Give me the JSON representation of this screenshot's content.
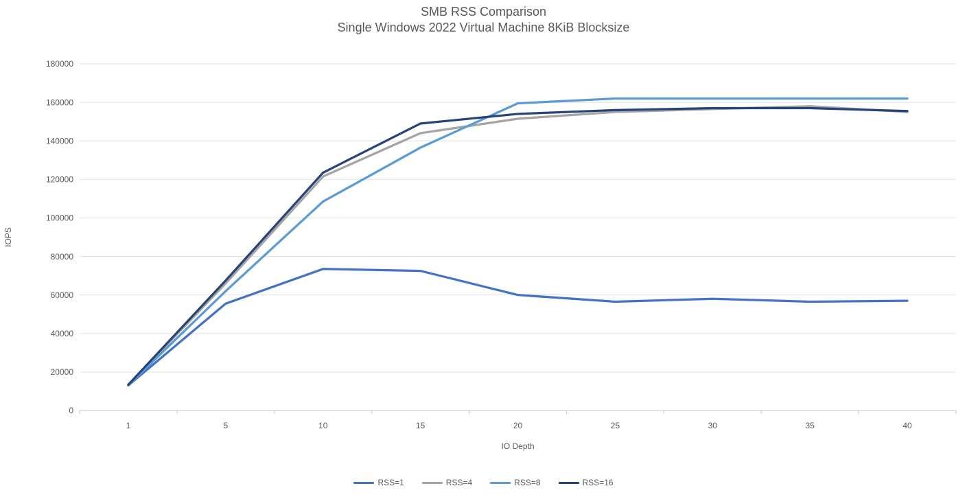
{
  "chart_data": {
    "type": "line",
    "title": "SMB RSS Comparison",
    "subtitle": "Single Windows 2022 Virtual Machine 8KiB Blocksize",
    "xlabel": "IO Depth",
    "ylabel": "IOPS",
    "categories": [
      1,
      5,
      10,
      15,
      20,
      25,
      30,
      35,
      40
    ],
    "series": [
      {
        "name": "RSS=1",
        "color": "#4472C4",
        "values": [
          13000,
          55500,
          73500,
          72500,
          60000,
          56500,
          58000,
          56500,
          57000
        ]
      },
      {
        "name": "RSS=4",
        "color": "#A5A5A5",
        "values": [
          13200,
          66000,
          121500,
          144000,
          151500,
          155000,
          156500,
          158000,
          155000
        ]
      },
      {
        "name": "RSS=8",
        "color": "#5B9BD5",
        "values": [
          13100,
          62000,
          108500,
          136500,
          159500,
          162000,
          162000,
          162000,
          162000
        ]
      },
      {
        "name": "RSS=16",
        "color": "#264478",
        "values": [
          13400,
          67500,
          123500,
          149000,
          154000,
          156000,
          157000,
          157000,
          155500
        ]
      }
    ],
    "ylim": [
      0,
      180000
    ],
    "ytick_step": 20000,
    "grid": true,
    "legend_position": "bottom",
    "colors": {
      "title_text": "#595959",
      "axis_text": "#595959",
      "gridline": "#E2E2E2",
      "axis_line": "#C6C6C6",
      "background": "#ffffff"
    }
  }
}
